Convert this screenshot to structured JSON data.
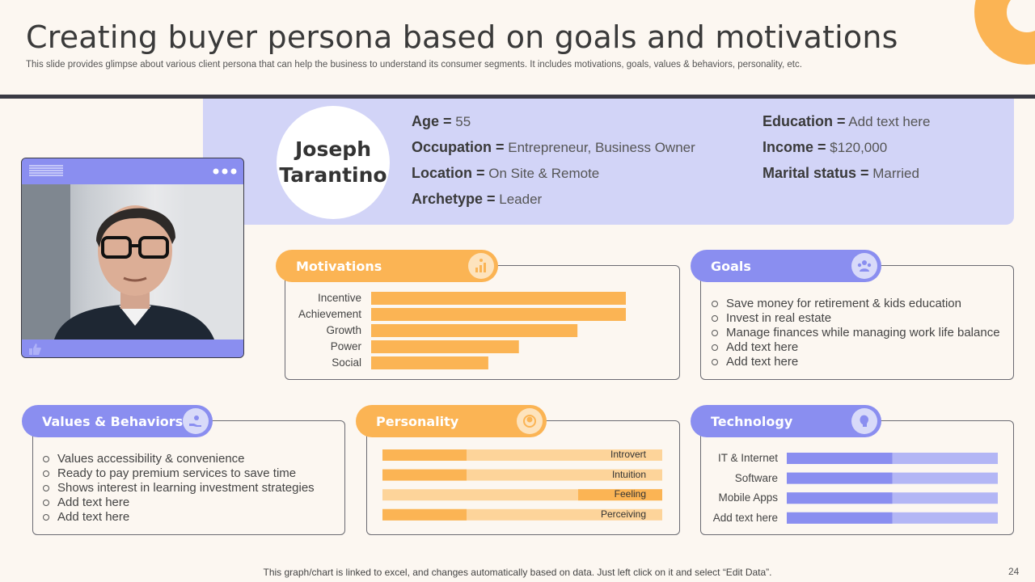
{
  "slide": {
    "title": "Creating buyer persona based on goals and motivations",
    "subtitle": "This slide provides glimpse about various client persona that can help the business to understand its consumer segments. It includes motivations, goals, values & behaviors, personality, etc.",
    "footer": "This graph/chart is linked to excel, and changes automatically based on data. Just left click on it and select “Edit Data”.",
    "page_number": "24"
  },
  "persona": {
    "first_name": "Joseph",
    "last_name": "Tarantino",
    "attributes_left": [
      {
        "label": "Age =",
        "value": " 55"
      },
      {
        "label": "Occupation =",
        "value": " Entrepreneur, Business Owner"
      },
      {
        "label": "Location =",
        "value": " On Site & Remote"
      },
      {
        "label": "Archetype =",
        "value": " Leader"
      }
    ],
    "attributes_right": [
      {
        "label": "Education =",
        "value": " Add text here"
      },
      {
        "label": "Income =",
        "value": " $120,000"
      },
      {
        "label": "Marital status =",
        "value": " Married"
      }
    ]
  },
  "motivations": {
    "heading": "Motivations",
    "icon": "motivation-chart-icon",
    "items": [
      {
        "label": "Incentive",
        "value": 100
      },
      {
        "label": "Achievement",
        "value": 100
      },
      {
        "label": "Growth",
        "value": 81
      },
      {
        "label": "Power",
        "value": 58
      },
      {
        "label": "Social",
        "value": 46
      }
    ]
  },
  "goals": {
    "heading": "Goals",
    "icon": "target-group-icon",
    "items": [
      "Save money for retirement & kids education",
      "Invest in real estate",
      "Manage finances while managing work life balance",
      "Add text here",
      "Add text here"
    ]
  },
  "values": {
    "heading": "Values & Behaviors",
    "icon": "hand-value-icon",
    "items": [
      "Values accessibility & convenience",
      "Ready to pay premium services to save time",
      "Shows interest in learning investment strategies",
      "Add text here",
      "Add text here"
    ]
  },
  "personality": {
    "heading": "Personality",
    "icon": "personality-icon",
    "items": [
      {
        "label": "Introvert",
        "level": 0.3
      },
      {
        "label": "Intuition",
        "level": 0.3
      },
      {
        "label": "Feeling",
        "level": 0.3
      },
      {
        "label": "Perceiving",
        "level": 0.3
      }
    ]
  },
  "technology": {
    "heading": "Technology",
    "icon": "brain-tech-icon",
    "items": [
      {
        "label": "IT & Internet",
        "level": 0.5
      },
      {
        "label": "Software",
        "level": 0.5
      },
      {
        "label": "Mobile Apps",
        "level": 0.5
      },
      {
        "label": "Add text here",
        "level": 0.5
      }
    ]
  },
  "colors": {
    "orange": "#fbb454",
    "orange_light": "#fdd49a",
    "blue": "#8a8ef0",
    "blue_light": "#b3b6f5",
    "band": "#d2d4f7"
  }
}
